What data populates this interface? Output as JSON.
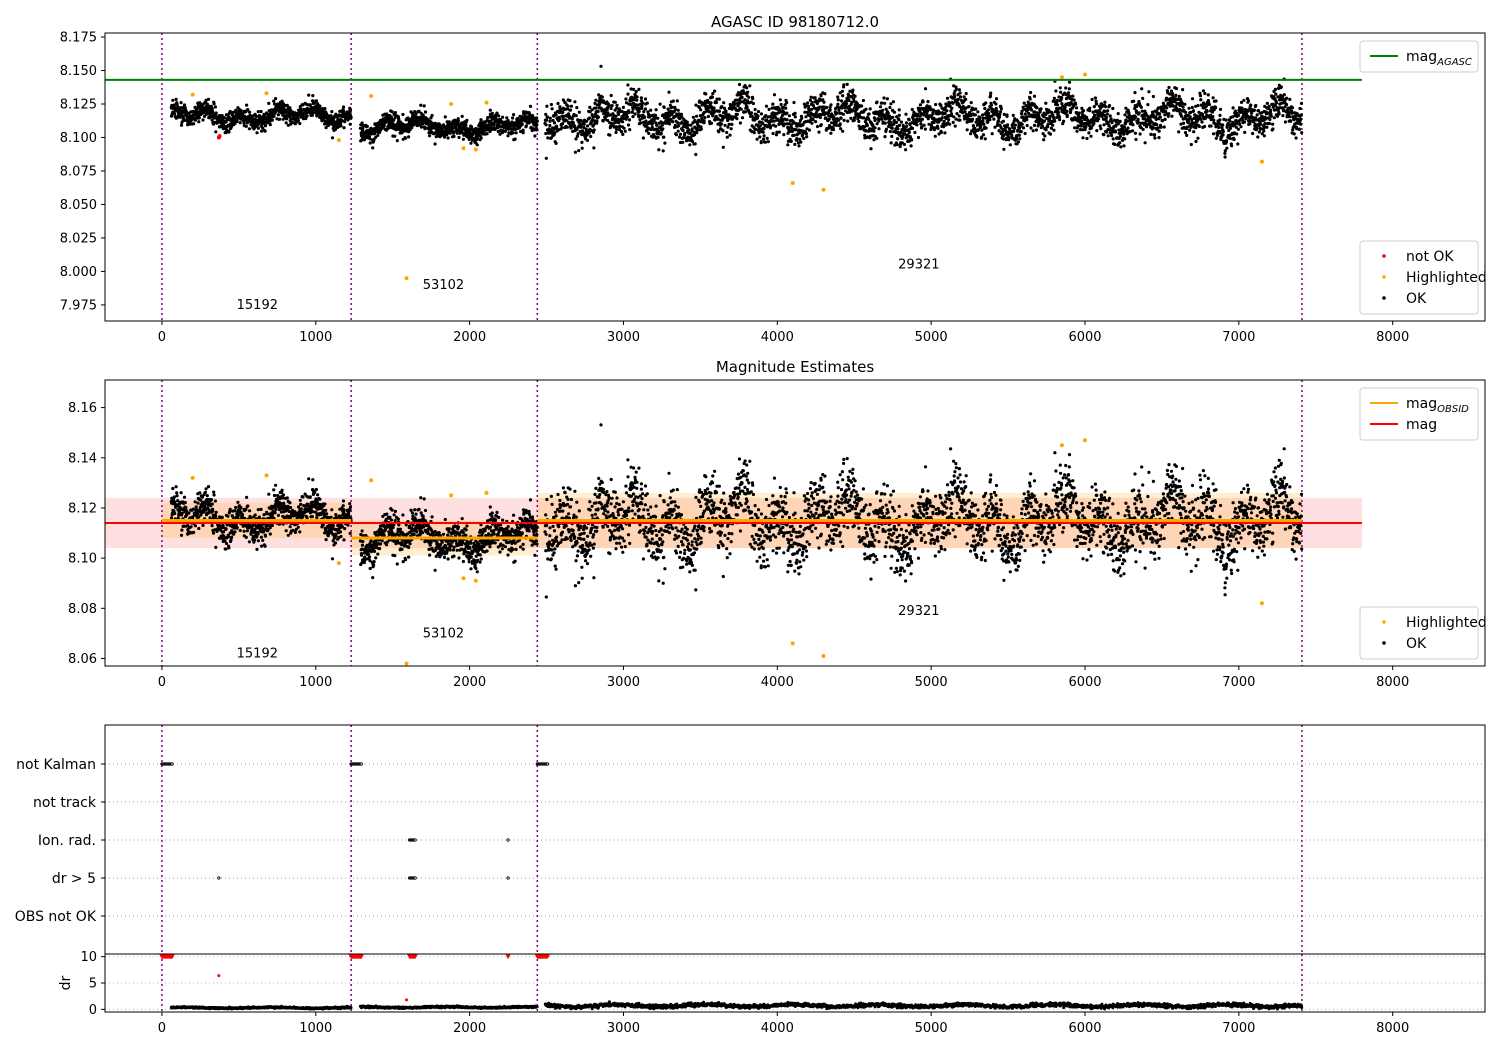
{
  "chart_data": [
    {
      "type": "scatter",
      "title": "AGASC ID 98180712.0",
      "xlim": [
        -370,
        8600
      ],
      "ylim": [
        7.963,
        8.178
      ],
      "x_ticks": [
        0,
        1000,
        2000,
        3000,
        4000,
        5000,
        6000,
        7000,
        8000
      ],
      "x_tick_labels": [
        "0",
        "1000",
        "2000",
        "3000",
        "4000",
        "5000",
        "6000",
        "7000",
        "8000"
      ],
      "y_ticks": [
        7.975,
        8.0,
        8.025,
        8.05,
        8.075,
        8.1,
        8.125,
        8.15,
        8.175
      ],
      "y_tick_labels": [
        "7.975",
        "8.000",
        "8.025",
        "8.050",
        "8.075",
        "8.100",
        "8.125",
        "8.150",
        "8.175"
      ],
      "vlines": [
        0,
        1230,
        2440,
        7410
      ],
      "obsid_labels": [
        {
          "x": 620,
          "y": 7.975,
          "text": "15192"
        },
        {
          "x": 1830,
          "y": 7.99,
          "text": "53102"
        },
        {
          "x": 4920,
          "y": 8.005,
          "text": "29321"
        }
      ],
      "hline": {
        "name": "mag",
        "sub": "AGASC",
        "y": 8.143,
        "x": [
          -370,
          7800
        ],
        "color": "#008000"
      },
      "segments": [
        {
          "x0": 60,
          "x1": 1230,
          "mean": 8.116,
          "sd": 0.006,
          "n": 850
        },
        {
          "x0": 1290,
          "x1": 2440,
          "mean": 8.108,
          "sd": 0.006,
          "n": 850
        },
        {
          "x0": 2490,
          "x1": 7410,
          "mean": 8.115,
          "sd": 0.011,
          "n": 3000
        }
      ],
      "highlighted": [
        {
          "x": 200,
          "y": 8.132
        },
        {
          "x": 680,
          "y": 8.133
        },
        {
          "x": 1150,
          "y": 8.098
        },
        {
          "x": 1360,
          "y": 8.131
        },
        {
          "x": 1590,
          "y": 7.995
        },
        {
          "x": 1880,
          "y": 8.125
        },
        {
          "x": 1960,
          "y": 8.092
        },
        {
          "x": 2040,
          "y": 8.091
        },
        {
          "x": 2110,
          "y": 8.126
        },
        {
          "x": 4100,
          "y": 8.066
        },
        {
          "x": 4300,
          "y": 8.061
        },
        {
          "x": 5850,
          "y": 8.145
        },
        {
          "x": 6000,
          "y": 8.147
        },
        {
          "x": 7150,
          "y": 8.082
        }
      ],
      "not_ok": [
        {
          "x": 370,
          "y": 8.1
        },
        {
          "x": 375,
          "y": 8.101
        }
      ],
      "legends": [
        {
          "position": "upper-right",
          "entries": [
            {
              "kind": "line",
              "color": "#008000",
              "label": "mag",
              "sub": "AGASC"
            }
          ]
        },
        {
          "position": "lower-right",
          "entries": [
            {
              "kind": "dot",
              "color": "#ff0000",
              "label": "not OK"
            },
            {
              "kind": "dot",
              "color": "#ffa500",
              "label": "Highlighted"
            },
            {
              "kind": "dot",
              "color": "#000000",
              "label": "OK"
            }
          ]
        }
      ]
    },
    {
      "type": "scatter",
      "title": "Magnitude Estimates",
      "xlim": [
        -370,
        8600
      ],
      "ylim": [
        8.057,
        8.171
      ],
      "x_ticks": [
        0,
        1000,
        2000,
        3000,
        4000,
        5000,
        6000,
        7000,
        8000
      ],
      "x_tick_labels": [
        "0",
        "1000",
        "2000",
        "3000",
        "4000",
        "5000",
        "6000",
        "7000",
        "8000"
      ],
      "y_ticks": [
        8.06,
        8.08,
        8.1,
        8.12,
        8.14,
        8.16
      ],
      "y_tick_labels": [
        "8.06",
        "8.08",
        "8.10",
        "8.12",
        "8.14",
        "8.16"
      ],
      "vlines": [
        0,
        1230,
        2440,
        7410
      ],
      "obsid_labels": [
        {
          "x": 620,
          "y": 8.062,
          "text": "15192"
        },
        {
          "x": 1830,
          "y": 8.07,
          "text": "53102"
        },
        {
          "x": 4920,
          "y": 8.079,
          "text": "29321"
        }
      ],
      "mag_band": {
        "mean": 8.114,
        "low": 8.104,
        "high": 8.124,
        "x": [
          -370,
          7800
        ],
        "color": "#ff0000"
      },
      "obsid_bands": [
        {
          "x0": 0,
          "x1": 1230,
          "mean": 8.115,
          "low": 8.108,
          "high": 8.122
        },
        {
          "x0": 1230,
          "x1": 2440,
          "mean": 8.108,
          "low": 8.101,
          "high": 8.115
        },
        {
          "x0": 2440,
          "x1": 7410,
          "mean": 8.115,
          "low": 8.104,
          "high": 8.126
        }
      ],
      "segments": [
        {
          "x0": 60,
          "x1": 1230,
          "mean": 8.116,
          "sd": 0.006,
          "n": 850
        },
        {
          "x0": 1290,
          "x1": 2440,
          "mean": 8.108,
          "sd": 0.006,
          "n": 850
        },
        {
          "x0": 2490,
          "x1": 7410,
          "mean": 8.115,
          "sd": 0.011,
          "n": 3000
        }
      ],
      "highlighted": [
        {
          "x": 200,
          "y": 8.132
        },
        {
          "x": 680,
          "y": 8.133
        },
        {
          "x": 1150,
          "y": 8.098
        },
        {
          "x": 1360,
          "y": 8.131
        },
        {
          "x": 1590,
          "y": 8.058
        },
        {
          "x": 1880,
          "y": 8.125
        },
        {
          "x": 1960,
          "y": 8.092
        },
        {
          "x": 2040,
          "y": 8.091
        },
        {
          "x": 2110,
          "y": 8.126
        },
        {
          "x": 4100,
          "y": 8.066
        },
        {
          "x": 4300,
          "y": 8.061
        },
        {
          "x": 5850,
          "y": 8.145
        },
        {
          "x": 6000,
          "y": 8.147
        },
        {
          "x": 7150,
          "y": 8.082
        }
      ],
      "legends": [
        {
          "position": "upper-right",
          "entries": [
            {
              "kind": "line",
              "color": "#ffa500",
              "label": "mag",
              "sub": "OBSID"
            },
            {
              "kind": "line",
              "color": "#ff0000",
              "label": "mag"
            }
          ]
        },
        {
          "position": "lower-right",
          "entries": [
            {
              "kind": "dot",
              "color": "#ffa500",
              "label": "Highlighted"
            },
            {
              "kind": "dot",
              "color": "#000000",
              "label": "OK"
            }
          ]
        }
      ]
    },
    {
      "type": "scatter",
      "title": "",
      "xlim": [
        -370,
        8600
      ],
      "categories": [
        "not Kalman",
        "not track",
        "Ion. rad.",
        "dr > 5",
        "OBS not OK"
      ],
      "vlines": [
        0,
        1230,
        2440,
        7410
      ],
      "flags": [
        {
          "category": "not Kalman",
          "ranges": [
            [
              0,
              70
            ],
            [
              1230,
              1300
            ],
            [
              2440,
              2510
            ]
          ]
        },
        {
          "category": "Ion. rad.",
          "ranges": [
            [
              1610,
              1650
            ],
            [
              2250,
              2255
            ]
          ]
        },
        {
          "category": "dr > 5",
          "ranges": [
            [
              370,
              375
            ],
            [
              1610,
              1650
            ],
            [
              2250,
              2255
            ]
          ]
        }
      ]
    },
    {
      "type": "scatter",
      "title": "",
      "ylabel": "dr",
      "xlim": [
        -370,
        8600
      ],
      "ylim": [
        -0.5,
        10.5
      ],
      "x_ticks": [
        0,
        1000,
        2000,
        3000,
        4000,
        5000,
        6000,
        7000,
        8000
      ],
      "x_tick_labels": [
        "0",
        "1000",
        "2000",
        "3000",
        "4000",
        "5000",
        "6000",
        "7000",
        "8000"
      ],
      "y_ticks": [
        0,
        5,
        10
      ],
      "y_tick_labels": [
        "0",
        "5",
        "10"
      ],
      "vlines": [
        0,
        1230,
        2440,
        7410
      ],
      "segments": [
        {
          "x0": 60,
          "x1": 1230,
          "mean": 0.3,
          "sd": 0.15,
          "n": 600
        },
        {
          "x0": 1290,
          "x1": 2440,
          "mean": 0.4,
          "sd": 0.15,
          "n": 600
        },
        {
          "x0": 2490,
          "x1": 7410,
          "mean": 0.7,
          "sd": 0.35,
          "n": 2200
        }
      ],
      "clipped_ranges": [
        [
          0,
          70
        ],
        [
          1230,
          1300
        ],
        [
          1610,
          1650
        ],
        [
          2250,
          2255
        ],
        [
          2440,
          2510
        ]
      ],
      "not_ok": [
        {
          "x": 370,
          "y": 6.4
        },
        {
          "x": 1590,
          "y": 1.8
        }
      ]
    }
  ]
}
